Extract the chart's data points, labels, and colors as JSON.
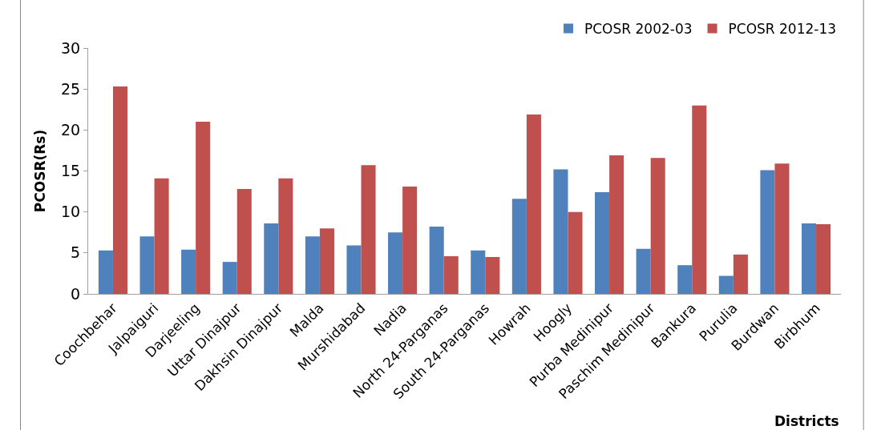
{
  "chart_data": {
    "type": "bar",
    "xlabel": "Districts",
    "ylabel": "PCOSR(Rs)",
    "categories": [
      "Coochbehar",
      "Jalpaiguri",
      "Darjeeling",
      "Uttar Dinajpur",
      "Dakhsin Dinajpur",
      "Malda",
      "Murshidabad",
      "Nadia",
      "North 24-Parganas",
      "South 24-Parganas",
      "Howrah",
      "Hoogly",
      "Purba Medinipur",
      "Paschim Medinipur",
      "Bankura",
      "Purulia",
      "Burdwan",
      "Birbhum"
    ],
    "series": [
      {
        "name": "PCOSR 2002-03",
        "color": "#4f81bd",
        "values": [
          5.3,
          7.0,
          5.4,
          3.9,
          8.6,
          7.0,
          5.9,
          7.5,
          8.2,
          5.3,
          11.6,
          15.2,
          12.4,
          5.5,
          3.5,
          2.2,
          15.1,
          8.6
        ]
      },
      {
        "name": "PCOSR 2012-13",
        "color": "#c0504d",
        "values": [
          25.3,
          14.1,
          21.0,
          12.8,
          14.1,
          8.0,
          15.7,
          13.1,
          4.6,
          4.5,
          21.9,
          10.0,
          16.9,
          16.6,
          23.0,
          4.8,
          15.9,
          8.5
        ]
      }
    ],
    "ylim": [
      0,
      30
    ],
    "yticks": [
      0,
      5,
      10,
      15,
      20,
      25,
      30
    ],
    "legend": "top right"
  }
}
